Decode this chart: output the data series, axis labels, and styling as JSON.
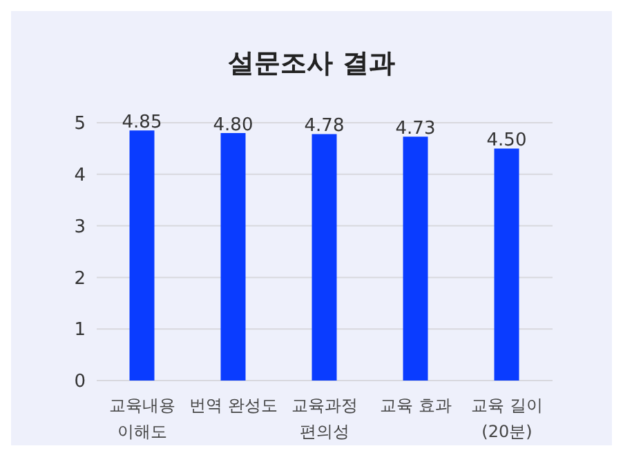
{
  "chart_data": {
    "type": "bar",
    "title": "설문조사 결과",
    "categories": [
      "교육내용\n이해도",
      "번역 완성도",
      "교육과정\n편의성",
      "교육 효과",
      "교육 길이\n(20분)"
    ],
    "values": [
      4.85,
      4.8,
      4.78,
      4.73,
      4.5
    ],
    "value_labels": [
      "4.85",
      "4.80",
      "4.78",
      "4.73",
      "4.50"
    ],
    "color": "#0a3cff",
    "ylim": [
      0,
      5
    ],
    "yticks": [
      0,
      1,
      2,
      3,
      4,
      5
    ],
    "grid": "y"
  }
}
